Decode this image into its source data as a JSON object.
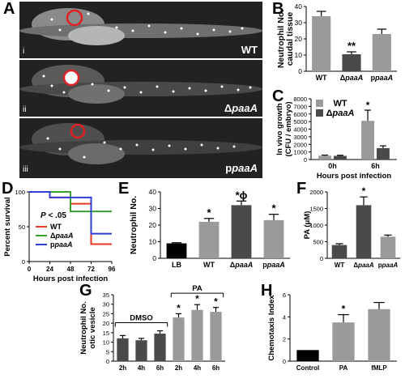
{
  "panels": {
    "A": {
      "label": "A",
      "images": [
        {
          "tag": "i",
          "name_prefix": "",
          "name_italic": "",
          "name_full": "WT"
        },
        {
          "tag": "ii",
          "name_prefix": "Δ",
          "name_italic": "paaA",
          "name_full": "ΔpaaA"
        },
        {
          "tag": "iii",
          "name_prefix": "p",
          "name_italic": "paaA",
          "name_full": "ppaaA"
        }
      ]
    },
    "B": {
      "label": "B"
    },
    "C": {
      "label": "C"
    },
    "D": {
      "label": "D"
    },
    "E": {
      "label": "E"
    },
    "F": {
      "label": "F"
    },
    "G": {
      "label": "G"
    },
    "H": {
      "label": "H"
    }
  },
  "chart_data": [
    {
      "panel": "B",
      "type": "bar",
      "ylabel_line1": "Neutrophil No.",
      "ylabel_line2": "caudal tissue",
      "categories": [
        "WT",
        "ΔpaaA",
        "ppaaA"
      ],
      "values": [
        34,
        10.5,
        23
      ],
      "errors": [
        3,
        1.5,
        3
      ],
      "colors": [
        "#9a9a9a",
        "#4a4a4a",
        "#9a9a9a"
      ],
      "annotations": [
        "",
        "**",
        ""
      ],
      "ylim": [
        0,
        40
      ],
      "yticks": [
        0,
        10,
        20,
        30,
        40
      ]
    },
    {
      "panel": "C",
      "type": "bar",
      "ylabel_line1": "In vivo growth",
      "ylabel_line2": "(CFU / embryo)",
      "xlabel": "Hours post infection",
      "categories": [
        "0h",
        "6h"
      ],
      "series": [
        {
          "name": "WT",
          "values": [
            500,
            5100
          ],
          "errors": [
            80,
            1400
          ],
          "color": "#9a9a9a"
        },
        {
          "name": "ΔpaaA",
          "values": [
            480,
            1500
          ],
          "errors": [
            80,
            300
          ],
          "color": "#4a4a4a"
        }
      ],
      "annotations": [
        "",
        "*"
      ],
      "ylim": [
        0,
        8000
      ],
      "yticks": [
        0,
        1000,
        2000,
        3000,
        4000,
        5000,
        6000,
        7000,
        8000
      ]
    },
    {
      "panel": "D",
      "type": "line",
      "ylabel": "Percent survival",
      "xlabel": "Hours post infection",
      "annotation": "P < .05",
      "xlim": [
        0,
        96
      ],
      "ylim": [
        0,
        100
      ],
      "xticks": [
        0,
        24,
        48,
        72,
        96
      ],
      "yticks": [
        0,
        50,
        100
      ],
      "series": [
        {
          "name": "WT",
          "color": "#e53a1e",
          "x": [
            0,
            24,
            48,
            72,
            96
          ],
          "y": [
            100,
            92,
            83,
            25,
            25
          ]
        },
        {
          "name": "ΔpaaA",
          "color": "#3aa030",
          "x": [
            0,
            48,
            96
          ],
          "y": [
            100,
            72,
            72
          ]
        },
        {
          "name": "ppaaA",
          "color": "#2f3fd6",
          "x": [
            0,
            24,
            72,
            96
          ],
          "y": [
            100,
            92,
            40,
            40
          ]
        }
      ]
    },
    {
      "panel": "E",
      "type": "bar",
      "ylabel": "Neutrophil No.",
      "categories": [
        "LB",
        "WT",
        "ΔpaaA",
        "ppaaA"
      ],
      "values": [
        9,
        22,
        32,
        23
      ],
      "errors": [
        0.4,
        2,
        2.5,
        3.5
      ],
      "colors": [
        "#000000",
        "#9a9a9a",
        "#4a4a4a",
        "#9a9a9a"
      ],
      "annotations": [
        "",
        "*",
        "*ɸ",
        "*"
      ],
      "ylim": [
        0,
        40
      ],
      "yticks": [
        0,
        10,
        20,
        30,
        40
      ]
    },
    {
      "panel": "F",
      "type": "bar",
      "ylabel": "PA (μM)",
      "categories": [
        "WT",
        "ΔpaaA",
        "ppaaA"
      ],
      "values": [
        400,
        1600,
        650
      ],
      "errors": [
        40,
        250,
        50
      ],
      "colors": [
        "#4a4a4a",
        "#4a4a4a",
        "#9a9a9a"
      ],
      "annotations": [
        "",
        "*",
        ""
      ],
      "ylim": [
        0,
        2000
      ],
      "yticks": [
        0,
        500,
        1000,
        1500,
        2000
      ]
    },
    {
      "panel": "G",
      "type": "bar",
      "ylabel_line1": "Neutrophil No.",
      "ylabel_line2": "otic vesicle",
      "categories": [
        "2h",
        "4h",
        "6h",
        "2h",
        "4h",
        "6h"
      ],
      "values": [
        12,
        11,
        14.5,
        23,
        27,
        26
      ],
      "errors": [
        1.5,
        1,
        1.5,
        2,
        2.8,
        2.3
      ],
      "colors": [
        "#4a4a4a",
        "#4a4a4a",
        "#4a4a4a",
        "#9a9a9a",
        "#9a9a9a",
        "#9a9a9a"
      ],
      "annotations": [
        "",
        "",
        "",
        "*",
        "*",
        "*"
      ],
      "groups": [
        {
          "name": "DMSO",
          "start": 0,
          "end": 2
        },
        {
          "name": "PA",
          "start": 3,
          "end": 5
        }
      ],
      "ylim": [
        0,
        35
      ],
      "yticks": [
        0,
        5,
        10,
        15,
        20,
        25,
        30,
        35
      ]
    },
    {
      "panel": "H",
      "type": "bar",
      "ylabel": "Chemotaxis Index",
      "categories": [
        "Control",
        "PA",
        "fMLP"
      ],
      "values": [
        1,
        3.5,
        4.7
      ],
      "errors": [
        0,
        0.7,
        0.6
      ],
      "colors": [
        "#000000",
        "#9a9a9a",
        "#9a9a9a"
      ],
      "annotations": [
        "",
        "*",
        ""
      ],
      "ylim": [
        0,
        6
      ],
      "yticks": [
        0,
        2,
        4,
        6
      ]
    }
  ]
}
